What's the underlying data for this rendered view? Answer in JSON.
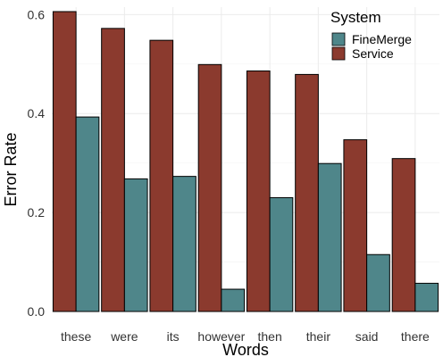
{
  "chart_data": {
    "type": "bar",
    "title": "",
    "xlabel": "Words",
    "ylabel": "Error Rate",
    "ylim": [
      0,
      0.615
    ],
    "yticks": [
      0.0,
      0.2,
      0.4,
      0.6
    ],
    "ytick_labels": [
      "0.0",
      "0.2",
      "0.4",
      "0.6"
    ],
    "grid": true,
    "legend": {
      "title": "System",
      "position": "top-right"
    },
    "categories": [
      "these",
      "were",
      "its",
      "however",
      "then",
      "their",
      "said",
      "there"
    ],
    "series": [
      {
        "name": "FineMerge",
        "color": "#4f868a",
        "values": [
          0.393,
          0.268,
          0.273,
          0.045,
          0.23,
          0.299,
          0.115,
          0.057
        ]
      },
      {
        "name": "Service",
        "color": "#8b3a2e",
        "values": [
          0.606,
          0.572,
          0.548,
          0.499,
          0.486,
          0.479,
          0.347,
          0.309
        ]
      }
    ]
  }
}
